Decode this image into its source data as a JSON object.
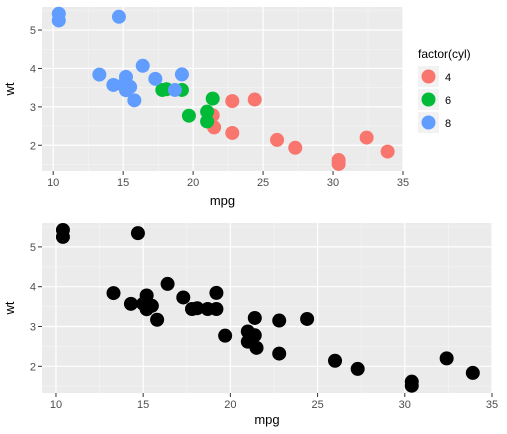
{
  "chart_data": [
    {
      "type": "scatter",
      "title": "",
      "xlabel": "mpg",
      "ylabel": "wt",
      "xlim": [
        9.2,
        35
      ],
      "ylim": [
        1.33,
        5.6
      ],
      "xticks": [
        10,
        15,
        20,
        25,
        30,
        35
      ],
      "yticks": [
        2,
        3,
        4,
        5
      ],
      "grid": true,
      "legend": {
        "title": "factor(cyl)",
        "placement": "right",
        "entries": [
          {
            "label": "4",
            "color": "#F8766D"
          },
          {
            "label": "6",
            "color": "#00BA38"
          },
          {
            "label": "8",
            "color": "#619CFF"
          }
        ]
      },
      "series": [
        {
          "name": "4",
          "color": "#F8766D",
          "points": [
            [
              22.8,
              2.32
            ],
            [
              24.4,
              3.19
            ],
            [
              22.8,
              3.15
            ],
            [
              32.4,
              2.2
            ],
            [
              30.4,
              1.615
            ],
            [
              33.9,
              1.835
            ],
            [
              21.5,
              2.465
            ],
            [
              27.3,
              1.935
            ],
            [
              26.0,
              2.14
            ],
            [
              30.4,
              1.513
            ],
            [
              21.4,
              2.78
            ]
          ]
        },
        {
          "name": "6",
          "color": "#00BA38",
          "points": [
            [
              21.0,
              2.62
            ],
            [
              21.0,
              2.875
            ],
            [
              21.4,
              3.215
            ],
            [
              18.1,
              3.46
            ],
            [
              19.2,
              3.44
            ],
            [
              17.8,
              3.44
            ],
            [
              19.7,
              2.77
            ]
          ]
        },
        {
          "name": "8",
          "color": "#619CFF",
          "points": [
            [
              18.7,
              3.44
            ],
            [
              14.3,
              3.57
            ],
            [
              16.4,
              4.07
            ],
            [
              17.3,
              3.73
            ],
            [
              15.2,
              3.78
            ],
            [
              10.4,
              5.25
            ],
            [
              10.4,
              5.424
            ],
            [
              14.7,
              5.345
            ],
            [
              15.5,
              3.52
            ],
            [
              15.2,
              3.435
            ],
            [
              13.3,
              3.84
            ],
            [
              19.2,
              3.845
            ],
            [
              15.8,
              3.17
            ],
            [
              15.0,
              3.57
            ]
          ]
        }
      ]
    },
    {
      "type": "scatter",
      "title": "",
      "xlabel": "mpg",
      "ylabel": "wt",
      "xlim": [
        9.2,
        35
      ],
      "ylim": [
        1.33,
        5.6
      ],
      "xticks": [
        10,
        15,
        20,
        25,
        30,
        35
      ],
      "yticks": [
        2,
        3,
        4,
        5
      ],
      "grid": true,
      "series": [
        {
          "color": "#000000",
          "points": [
            [
              21.0,
              2.62
            ],
            [
              21.0,
              2.875
            ],
            [
              22.8,
              2.32
            ],
            [
              21.4,
              3.215
            ],
            [
              18.7,
              3.44
            ],
            [
              18.1,
              3.46
            ],
            [
              14.3,
              3.57
            ],
            [
              24.4,
              3.19
            ],
            [
              22.8,
              3.15
            ],
            [
              19.2,
              3.44
            ],
            [
              17.8,
              3.44
            ],
            [
              16.4,
              4.07
            ],
            [
              17.3,
              3.73
            ],
            [
              15.2,
              3.78
            ],
            [
              10.4,
              5.25
            ],
            [
              10.4,
              5.424
            ],
            [
              14.7,
              5.345
            ],
            [
              32.4,
              2.2
            ],
            [
              30.4,
              1.615
            ],
            [
              33.9,
              1.835
            ],
            [
              21.5,
              2.465
            ],
            [
              15.5,
              3.52
            ],
            [
              15.2,
              3.435
            ],
            [
              13.3,
              3.84
            ],
            [
              19.2,
              3.845
            ],
            [
              27.3,
              1.935
            ],
            [
              26.0,
              2.14
            ],
            [
              30.4,
              1.513
            ],
            [
              15.8,
              3.17
            ],
            [
              19.7,
              2.77
            ],
            [
              15.0,
              3.57
            ],
            [
              21.4,
              2.78
            ]
          ]
        }
      ]
    }
  ]
}
